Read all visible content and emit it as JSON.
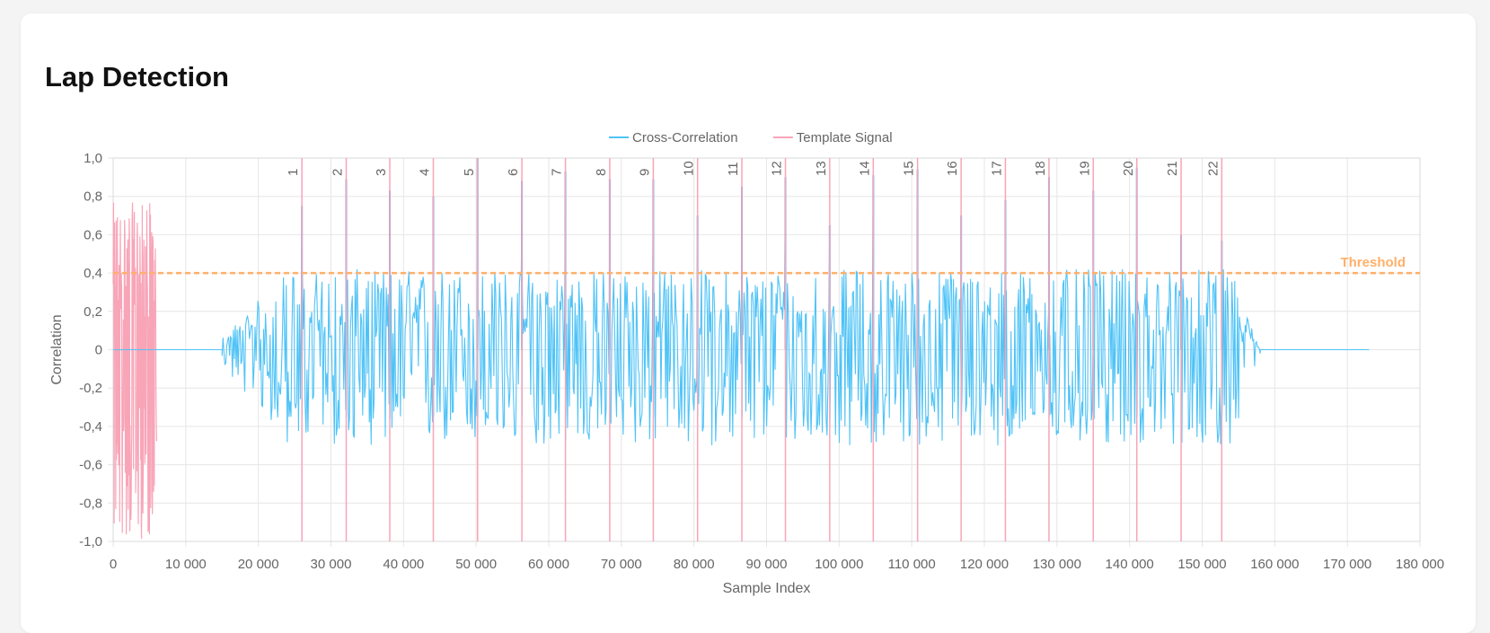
{
  "page": {
    "title": "Lap Detection"
  },
  "colors": {
    "cross_correlation": "#4fc3f7",
    "template_signal": "#f8a5b8",
    "threshold": "#ffb06a",
    "grid": "#e6e6e6",
    "tick_text": "#666666"
  },
  "chart_data": {
    "type": "line",
    "xlabel": "Sample Index",
    "ylabel": "Correlation",
    "xlim": [
      0,
      180000
    ],
    "ylim": [
      -1.0,
      1.0
    ],
    "grid": true,
    "legend_position": "top-center",
    "x_ticks": [
      "0",
      "10 000",
      "20 000",
      "30 000",
      "40 000",
      "50 000",
      "60 000",
      "70 000",
      "80 000",
      "90 000",
      "100 000",
      "110 000",
      "120 000",
      "130 000",
      "140 000",
      "150 000",
      "160 000",
      "170 000",
      "180 000"
    ],
    "y_ticks": [
      "-1,0",
      "-0,8",
      "-0,6",
      "-0,4",
      "-0,2",
      "0",
      "0,2",
      "0,4",
      "0,6",
      "0,8",
      "1,0"
    ],
    "series": [
      {
        "name": "Cross-Correlation",
        "color": "#4fc3f7",
        "x_range": [
          0,
          173000
        ],
        "nonzero_range": [
          15000,
          158000
        ],
        "typical_amplitude": [
          -0.5,
          0.42
        ],
        "peaks": [
          {
            "x": 26000,
            "y": 0.75
          },
          {
            "x": 32100,
            "y": 0.89
          },
          {
            "x": 38100,
            "y": 0.83
          },
          {
            "x": 44100,
            "y": 0.8
          },
          {
            "x": 50200,
            "y": 1.0
          },
          {
            "x": 56300,
            "y": 0.88
          },
          {
            "x": 62300,
            "y": 0.93
          },
          {
            "x": 68400,
            "y": 0.89
          },
          {
            "x": 74400,
            "y": 0.89
          },
          {
            "x": 80500,
            "y": 0.7
          },
          {
            "x": 86600,
            "y": 0.85
          },
          {
            "x": 92600,
            "y": 0.9
          },
          {
            "x": 98700,
            "y": 0.65
          },
          {
            "x": 104700,
            "y": 0.91
          },
          {
            "x": 110800,
            "y": 0.94
          },
          {
            "x": 116800,
            "y": 0.7
          },
          {
            "x": 122900,
            "y": 0.78
          },
          {
            "x": 128900,
            "y": 0.9
          },
          {
            "x": 135000,
            "y": 0.83
          },
          {
            "x": 141000,
            "y": 0.95
          },
          {
            "x": 147100,
            "y": 0.6
          },
          {
            "x": 152700,
            "y": 0.57
          }
        ]
      },
      {
        "name": "Template Signal",
        "color": "#f8a5b8",
        "x_range": [
          0,
          6000
        ],
        "typical_amplitude": [
          -1.0,
          0.77
        ]
      }
    ],
    "threshold": {
      "label": "Threshold",
      "y": 0.4
    },
    "laps": [
      {
        "label": "1",
        "x": 26000
      },
      {
        "label": "2",
        "x": 32100
      },
      {
        "label": "3",
        "x": 38100
      },
      {
        "label": "4",
        "x": 44100
      },
      {
        "label": "5",
        "x": 50200
      },
      {
        "label": "6",
        "x": 56300
      },
      {
        "label": "7",
        "x": 62300
      },
      {
        "label": "8",
        "x": 68400
      },
      {
        "label": "9",
        "x": 74400
      },
      {
        "label": "10",
        "x": 80500
      },
      {
        "label": "11",
        "x": 86600
      },
      {
        "label": "12",
        "x": 92600
      },
      {
        "label": "13",
        "x": 98700
      },
      {
        "label": "14",
        "x": 104700
      },
      {
        "label": "15",
        "x": 110800
      },
      {
        "label": "16",
        "x": 116800
      },
      {
        "label": "17",
        "x": 122900
      },
      {
        "label": "18",
        "x": 128900
      },
      {
        "label": "19",
        "x": 135000
      },
      {
        "label": "20",
        "x": 141000
      },
      {
        "label": "21",
        "x": 147100
      },
      {
        "label": "22",
        "x": 152700
      }
    ]
  }
}
